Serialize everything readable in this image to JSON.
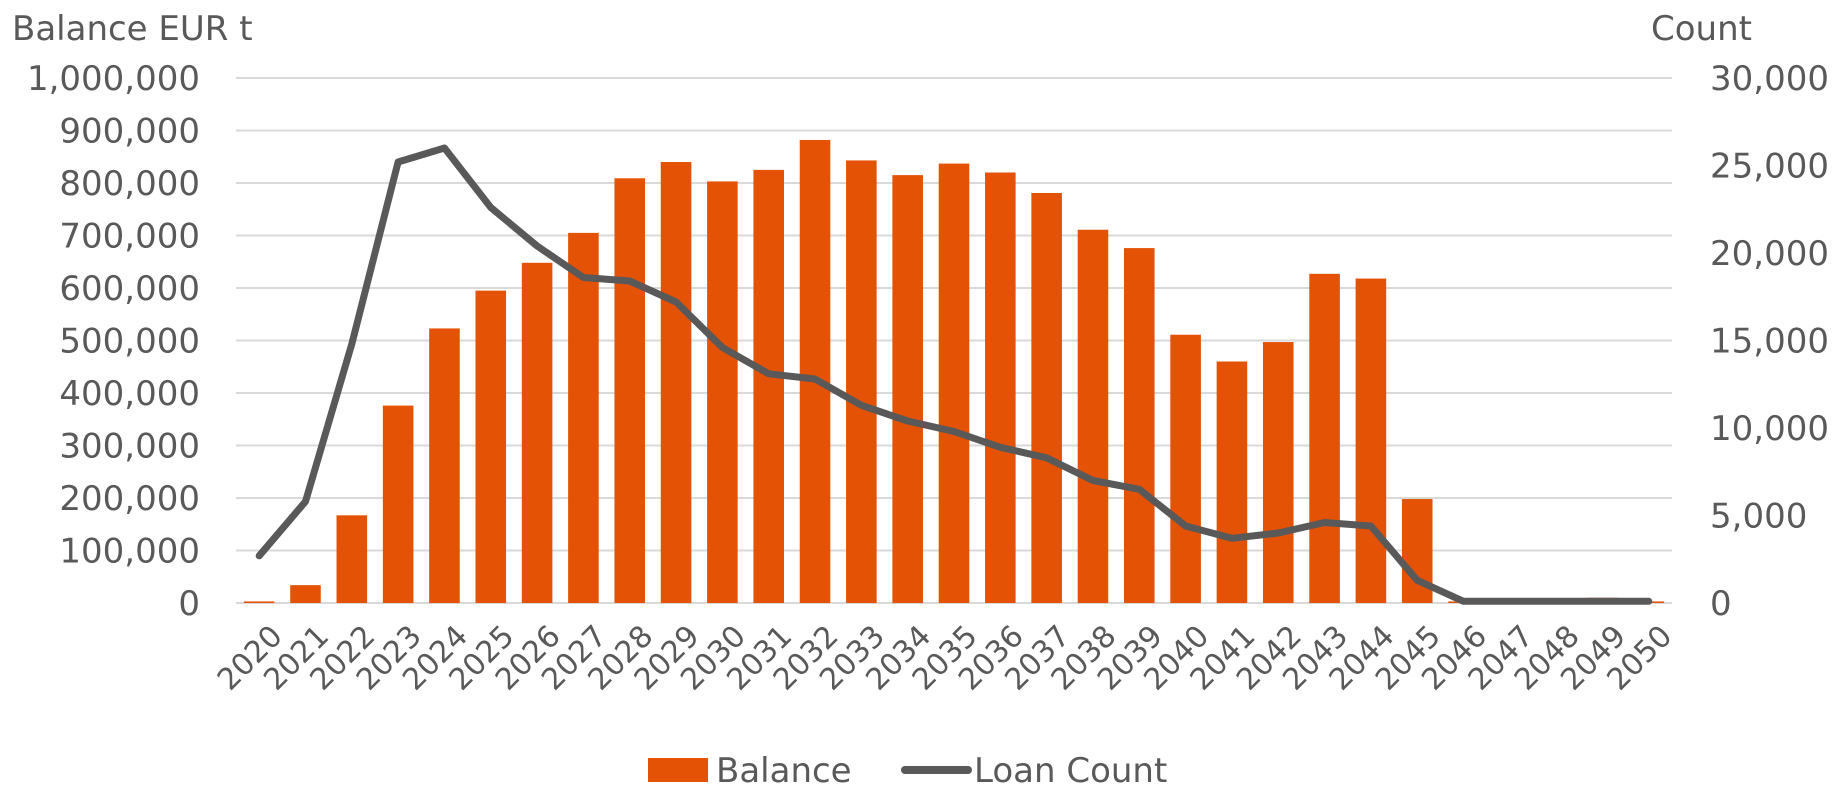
{
  "chart_data": {
    "type": "bar",
    "title": "",
    "categories": [
      "2020",
      "2021",
      "2022",
      "2023",
      "2024",
      "2025",
      "2026",
      "2027",
      "2028",
      "2029",
      "2030",
      "2031",
      "2032",
      "2033",
      "2034",
      "2035",
      "2036",
      "2037",
      "2038",
      "2039",
      "2040",
      "2041",
      "2042",
      "2043",
      "2044",
      "2045",
      "2046",
      "2047",
      "2048",
      "2049",
      "2050"
    ],
    "y_left": {
      "label": "Balance EUR t",
      "ylim": [
        0,
        1000000
      ],
      "ticks": [
        0,
        100000,
        200000,
        300000,
        400000,
        500000,
        600000,
        700000,
        800000,
        900000,
        1000000
      ],
      "tick_labels": [
        "0",
        "100,000",
        "200,000",
        "300,000",
        "400,000",
        "500,000",
        "600,000",
        "700,000",
        "800,000",
        "900,000",
        "1,000,000"
      ]
    },
    "y_right": {
      "label": "Count",
      "ylim": [
        0,
        30000
      ],
      "ticks": [
        0,
        5000,
        10000,
        15000,
        20000,
        25000,
        30000
      ],
      "tick_labels": [
        "0",
        "5,000",
        "10,000",
        "15,000",
        "20,000",
        "25,000",
        "30,000"
      ]
    },
    "grid": true,
    "legend_position": "bottom",
    "series": [
      {
        "name": "Balance",
        "type": "bar",
        "axis": "left",
        "color": "#e35205",
        "values": [
          3000,
          34000,
          167000,
          376000,
          523000,
          595000,
          648000,
          705000,
          809000,
          840000,
          803000,
          825000,
          882000,
          843000,
          815000,
          837000,
          820000,
          781000,
          711000,
          676000,
          511000,
          460000,
          497000,
          627000,
          618000,
          198000,
          3000,
          0,
          0,
          10000,
          3000
        ]
      },
      {
        "name": "Loan Count",
        "type": "line",
        "axis": "right",
        "color": "#595959",
        "values": [
          2700,
          5800,
          14800,
          25200,
          26000,
          22600,
          20400,
          18600,
          18400,
          17200,
          14600,
          13100,
          12800,
          11300,
          10400,
          9800,
          8900,
          8300,
          7000,
          6500,
          4400,
          3700,
          4000,
          4600,
          4400,
          1300,
          100,
          100,
          100,
          100,
          100
        ]
      }
    ]
  }
}
